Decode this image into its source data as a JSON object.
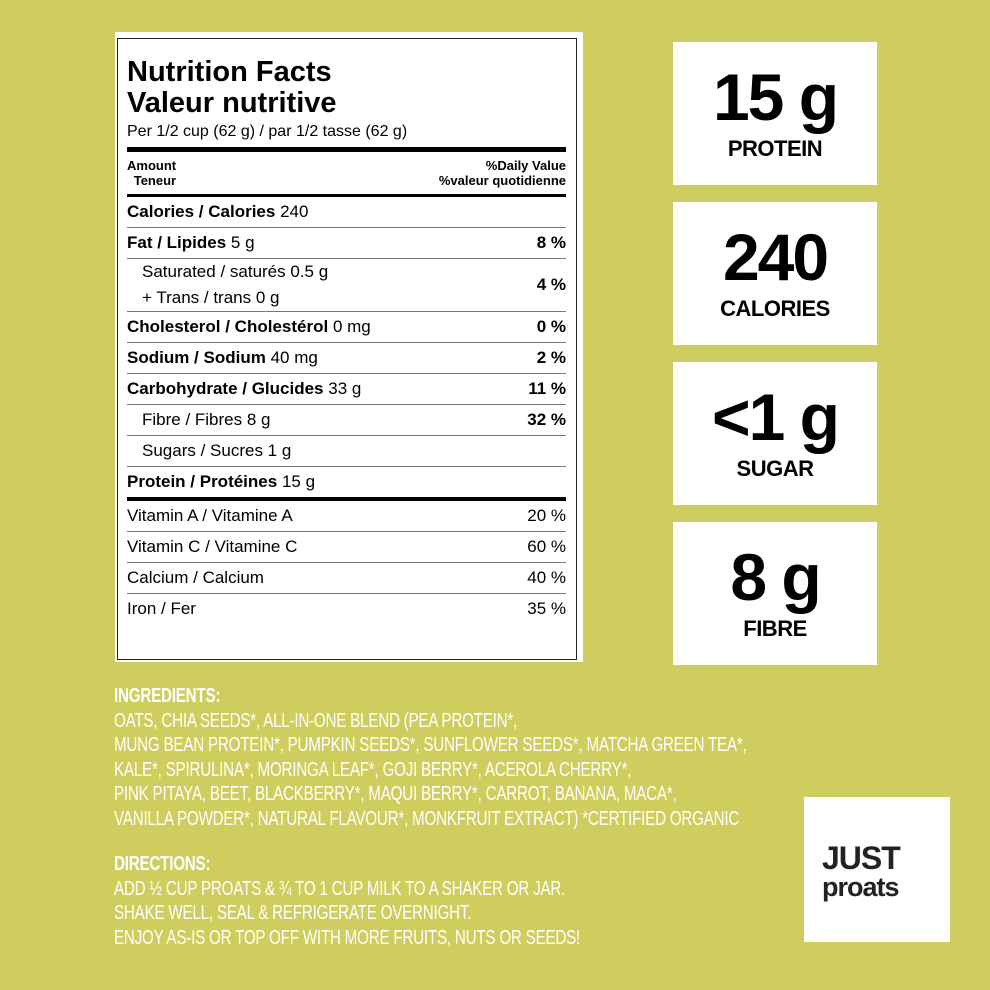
{
  "label": {
    "title_en": "Nutrition Facts",
    "title_fr": "Valeur nutritive",
    "serving": "Per 1/2 cup (62 g) / par 1/2 tasse (62 g)",
    "amount_en": "Amount",
    "amount_fr": "Teneur",
    "dv_en": "%Daily Value",
    "dv_fr": "%valeur quotidienne",
    "rows": [
      {
        "name": "Calories / Calories",
        "amount": "240"
      },
      {
        "name": "Fat / Lipides",
        "amount": "5 g",
        "dv": "8 %"
      },
      {
        "lines": [
          "Saturated / saturés 0.5 g",
          "+ Trans / trans 0 g"
        ],
        "dv": "4 %"
      },
      {
        "name": "Cholesterol / Cholestérol",
        "amount": "0 mg",
        "dv": "0 %"
      },
      {
        "name": "Sodium / Sodium",
        "amount": "40 mg",
        "dv": "2 %"
      },
      {
        "name": "Carbohydrate / Glucides",
        "amount": "33 g",
        "dv": "11 %"
      },
      {
        "lines": [
          "Fibre / Fibres 8 g"
        ],
        "dv": "32 %"
      },
      {
        "lines": [
          "Sugars / Sucres 1 g"
        ]
      },
      {
        "name": "Protein / Protéines",
        "amount": "15 g"
      }
    ],
    "vitamins": [
      {
        "name": "Vitamin A / Vitamine A",
        "dv": "20 %"
      },
      {
        "name": "Vitamin C / Vitamine C",
        "dv": "60 %"
      },
      {
        "name": "Calcium / Calcium",
        "dv": "40 %"
      },
      {
        "name": "Iron / Fer",
        "dv": "35 %"
      }
    ]
  },
  "stats": [
    {
      "value": "15 g",
      "label": "PROTEIN"
    },
    {
      "value": "240",
      "label": "CALORIES"
    },
    {
      "value": "<1 g",
      "label": "SUGAR"
    },
    {
      "value": "8 g",
      "label": "FIBRE"
    }
  ],
  "ingredients": {
    "heading": "INGREDIENTS:",
    "lines": [
      "OATS, CHIA SEEDS*, ALL-IN-ONE BLEND (PEA PROTEIN*,",
      "MUNG BEAN PROTEIN*, PUMPKIN SEEDS*, SUNFLOWER SEEDS*, MATCHA GREEN TEA*,",
      "KALE*, SPIRULINA*, MORINGA LEAF*, GOJI BERRY*, ACEROLA CHERRY*,",
      "PINK PITAYA, BEET, BLACKBERRY*, MAQUI BERRY*, CARROT, BANANA, MACA*,",
      "VANILLA POWDER*, NATURAL FLAVOUR*, MONKFRUIT EXTRACT) *CERTIFIED ORGANIC"
    ]
  },
  "directions": {
    "heading": "DIRECTIONS:",
    "lines": [
      "ADD ½ CUP PROATS & ¾ TO 1 CUP MILK TO A SHAKER OR JAR.",
      "SHAKE WELL, SEAL & REFRIGERATE OVERNIGHT.",
      "ENJOY AS-IS OR TOP OFF WITH MORE FRUITS, NUTS OR SEEDS!"
    ]
  },
  "logo": {
    "line1": "JUST",
    "line2": "proats"
  }
}
